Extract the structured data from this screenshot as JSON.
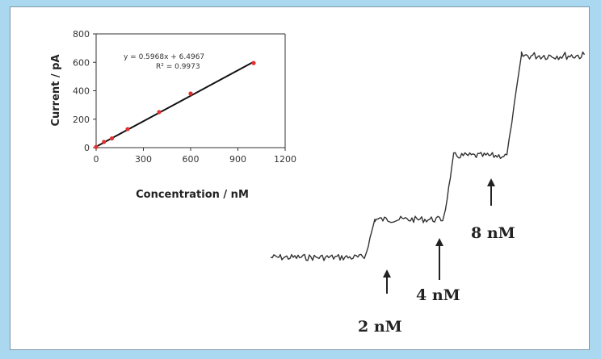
{
  "colors": {
    "background": "#a9d8f0",
    "panel": "#ffffff",
    "trace": "#333333",
    "point": "#e03030"
  },
  "chart_data": [
    {
      "type": "scatter",
      "xlabel": "Concentration / nM",
      "ylabel": "Current / pA",
      "xlim": [
        0,
        1200
      ],
      "ylim": [
        0,
        800
      ],
      "xticks": [
        "0",
        "300",
        "600",
        "900",
        "1200"
      ],
      "yticks": [
        "0",
        "200",
        "400",
        "600",
        "800"
      ],
      "equation": "y = 0.5968x + 6.4967",
      "r2": "R² = 0.9973",
      "grid": false,
      "series": [
        {
          "x": [
            0,
            50,
            100,
            200,
            400,
            600,
            1000
          ],
          "y": [
            5,
            40,
            65,
            130,
            250,
            380,
            595
          ]
        }
      ],
      "fit": {
        "slope": 0.5968,
        "intercept": 6.4967
      }
    },
    {
      "type": "line",
      "annotations": [
        "2 nM",
        "4 nM",
        "8 nM"
      ],
      "steps": {
        "levels": [
          0,
          1,
          2,
          4
        ],
        "step_times": [
          0.3,
          0.55,
          0.75
        ]
      }
    }
  ]
}
